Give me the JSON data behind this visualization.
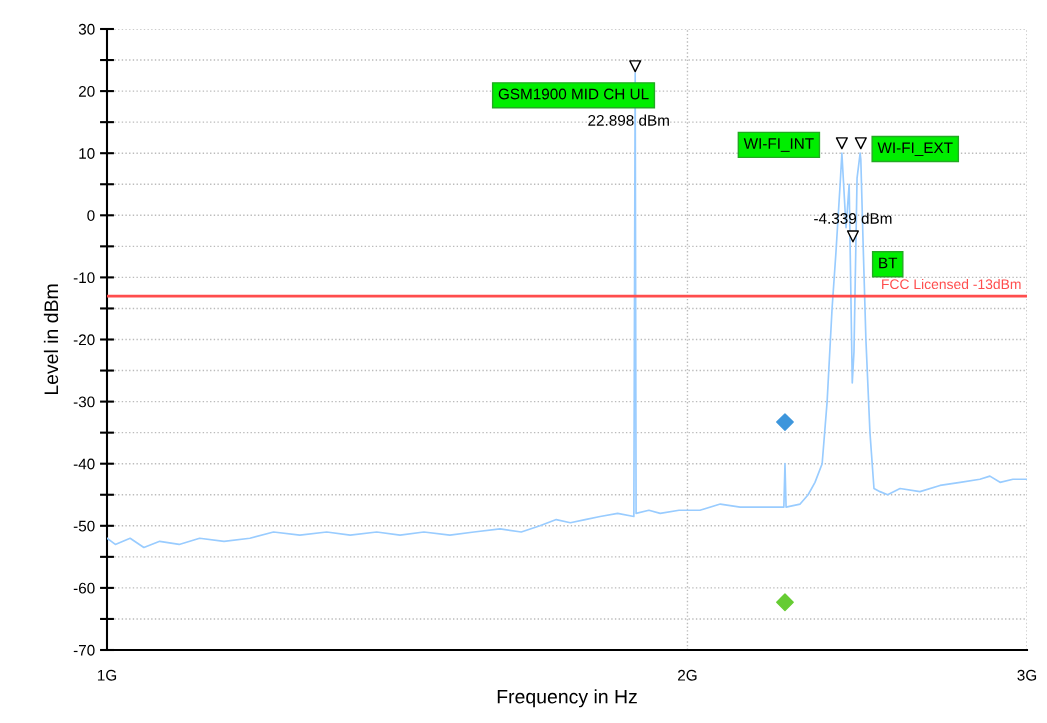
{
  "chart_data": {
    "type": "line",
    "xlabel": "Frequency in Hz",
    "ylabel": "Level in dBm",
    "log": "x",
    "grid": true,
    "legend": false,
    "xlim": [
      1,
      3
    ],
    "xticks": [
      {
        "value": 1,
        "label": "1G"
      },
      {
        "value": 2,
        "label": "2G"
      },
      {
        "value": 3,
        "label": "3G"
      }
    ],
    "ylim": [
      -70,
      30
    ],
    "yticks": [
      -70,
      {
        "value": -65,
        "label": null
      },
      -60,
      {
        "value": -55,
        "label": null
      },
      -50,
      {
        "value": -45,
        "label": null
      },
      -40,
      {
        "value": -35,
        "label": null
      },
      -30,
      {
        "value": -25,
        "label": null
      },
      -20,
      {
        "value": -15,
        "label": null
      },
      -10,
      {
        "value": -5,
        "label": null
      },
      0,
      {
        "value": 5,
        "label": null
      },
      10,
      {
        "value": 15,
        "label": null
      },
      20,
      {
        "value": 25,
        "label": null
      },
      30
    ],
    "series": [
      {
        "color": "#99ccff",
        "marker": "none",
        "line_style": "solid",
        "x": [
          1.0,
          1.01,
          1.028,
          1.045,
          1.065,
          1.09,
          1.117,
          1.15,
          1.186,
          1.22,
          1.259,
          1.3,
          1.337,
          1.38,
          1.419,
          1.46,
          1.506,
          1.55,
          1.599,
          1.64,
          1.677,
          1.71,
          1.739,
          1.77,
          1.802,
          1.84,
          1.876,
          1.879,
          1.881,
          1.91,
          1.936,
          1.98,
          2.03,
          2.08,
          2.13,
          2.19,
          2.244,
          2.247,
          2.25,
          2.288,
          2.31,
          2.329,
          2.349,
          2.363,
          2.377,
          2.388,
          2.4,
          2.405,
          2.409,
          2.417,
          2.426,
          2.435,
          2.44,
          2.449,
          2.458,
          2.46,
          2.467,
          2.475,
          2.487,
          2.499,
          2.517,
          2.54,
          2.578,
          2.64,
          2.704,
          2.77,
          2.836,
          2.87,
          2.905,
          2.95,
          3.0
        ],
        "values": [
          -52,
          -53,
          -52,
          -53.5,
          -52.5,
          -53,
          -52,
          -52.5,
          -52,
          -51,
          -51.5,
          -51,
          -51.5,
          -51,
          -51.5,
          -51,
          -51.5,
          -51,
          -50.5,
          -51,
          -50,
          -49,
          -49.5,
          -49,
          -48.5,
          -48,
          -48.5,
          22.9,
          -48,
          -47.5,
          -48,
          -47.5,
          -47.5,
          -46.5,
          -47,
          -47,
          -47,
          -40,
          -47,
          -46.5,
          -45,
          -43,
          -40,
          -30,
          -15,
          -6,
          5,
          10,
          6,
          -2,
          5,
          -27,
          -22,
          6,
          10,
          9,
          -5,
          -20,
          -35,
          -44,
          -44.5,
          -45,
          -44,
          -44.5,
          -43.5,
          -43,
          -42.5,
          -42,
          -43,
          -42.5,
          -42.5
        ]
      },
      {
        "type": "scatter",
        "color": "#000000",
        "marker": "triangle",
        "x": [
          1.879,
          2.405,
          2.46,
          2.437
        ],
        "values": [
          24,
          11.6,
          11.6,
          -3.4
        ]
      },
      {
        "type": "scatter",
        "color": "#3d96dc",
        "marker": "diamond",
        "x": [
          2.247
        ],
        "values": [
          -33.3
        ]
      },
      {
        "type": "scatter",
        "color": "#66cc33",
        "marker": "diamond",
        "x": [
          2.247
        ],
        "values": [
          -62.3
        ]
      }
    ],
    "ref_lines": [
      {
        "axis": "y",
        "value": -13,
        "label": "FCC Licensed -13dBm",
        "color": "#ff4d4d",
        "line_style": "solid"
      }
    ],
    "annotations": [
      {
        "text": "GSM1900 MID CH UL",
        "x": 1.879,
        "y": 22.9
      },
      {
        "text": "22.898 dBm",
        "x": 1.879,
        "y": 22.9
      },
      {
        "text": "WI-FI_INT",
        "x": 2.405,
        "y": 10
      },
      {
        "text": "WI-FI_EXT",
        "x": 2.46,
        "y": 10
      },
      {
        "text": "-4.339 dBm",
        "x": 2.437,
        "y": -4.3
      },
      {
        "text": "BT",
        "x": 2.437,
        "y": -4.3
      }
    ]
  }
}
